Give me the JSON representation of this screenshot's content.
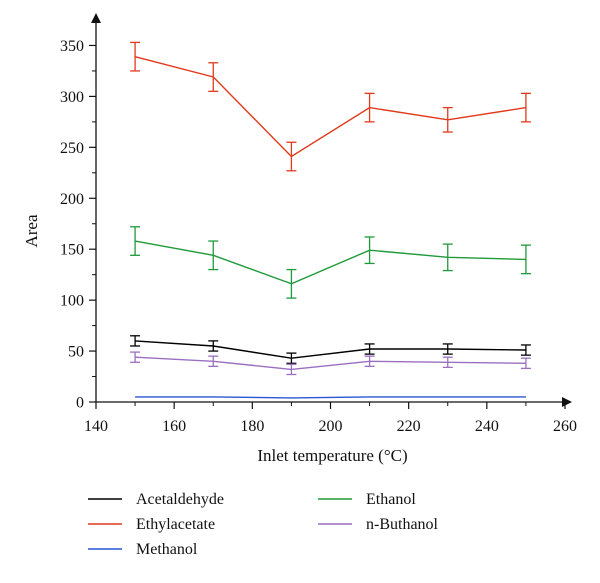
{
  "chart_data": {
    "type": "line",
    "xlabel": "Inlet temperature (°C)",
    "ylabel": "Area",
    "xlim": [
      140,
      260
    ],
    "ylim": [
      0,
      375
    ],
    "x_ticks": [
      140,
      160,
      180,
      200,
      220,
      240,
      260
    ],
    "y_ticks": [
      0,
      50,
      100,
      150,
      200,
      250,
      300,
      350
    ],
    "x": [
      150,
      170,
      190,
      210,
      230,
      250
    ],
    "series": [
      {
        "name": "Acetaldehyde",
        "color": "#000000",
        "values": [
          60,
          55,
          43,
          52,
          52,
          51
        ],
        "errors": [
          5,
          5,
          5,
          5,
          5,
          5
        ]
      },
      {
        "name": "Ethylacetate",
        "color": "#e03a1c",
        "values": [
          339,
          319,
          241,
          289,
          277,
          289
        ],
        "errors": [
          14,
          14,
          14,
          14,
          12,
          14
        ]
      },
      {
        "name": "Methanol",
        "color": "#2a55d4",
        "values": [
          5,
          5,
          4,
          5,
          5,
          5
        ],
        "errors": [
          0,
          0,
          0,
          0,
          0,
          0
        ]
      },
      {
        "name": "Ethanol",
        "color": "#1f9a3a",
        "values": [
          158,
          144,
          116,
          149,
          142,
          140
        ],
        "errors": [
          14,
          14,
          14,
          13,
          13,
          14
        ]
      },
      {
        "name": "n-Buthanol",
        "color": "#9a6fc0",
        "values": [
          44,
          40,
          32,
          40,
          39,
          38
        ],
        "errors": [
          5,
          5,
          5,
          5,
          5,
          5
        ]
      }
    ],
    "legend_position": "bottom",
    "grid": false
  }
}
